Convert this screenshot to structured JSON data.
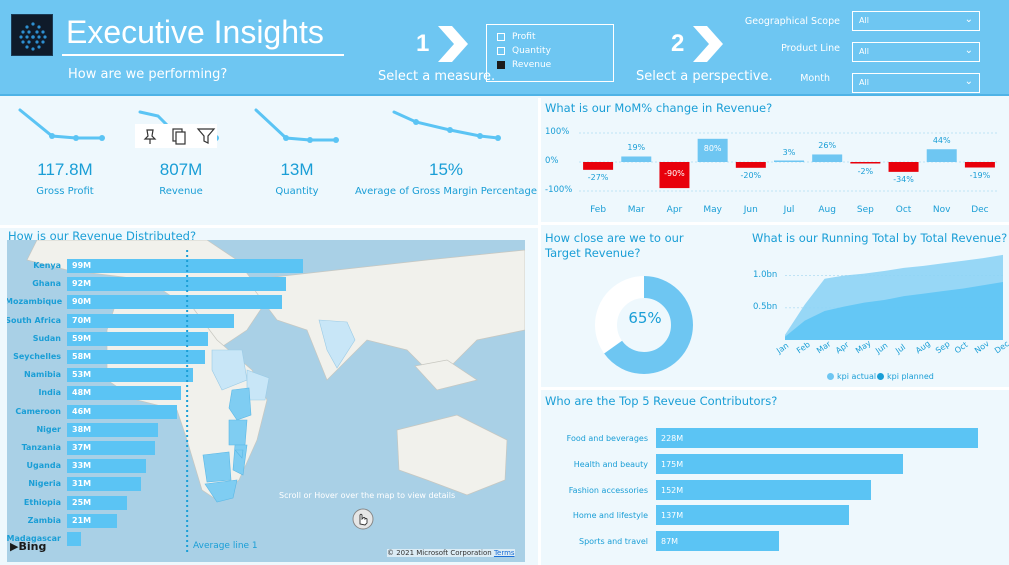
{
  "header": {
    "title": "Executive Insights",
    "subtitle": "How are we performing?",
    "step1_num": "1",
    "step1_text": "Select a measure.",
    "step2_num": "2",
    "step2_text": "Select a perspective.",
    "measures": [
      {
        "label": "Profit",
        "selected": false
      },
      {
        "label": "Quantity",
        "selected": false
      },
      {
        "label": "Revenue",
        "selected": true
      }
    ],
    "filters": [
      {
        "label": "Geographical Scope",
        "value": "All"
      },
      {
        "label": "Product Line",
        "value": "All"
      },
      {
        "label": "Month",
        "value": "All"
      }
    ]
  },
  "kpis": [
    {
      "value": "117.8M",
      "label": "Gross Profit"
    },
    {
      "value": "807M",
      "label": "Revenue"
    },
    {
      "value": "13M",
      "label": "Quantity"
    },
    {
      "value": "15%",
      "label": "Average of Gross Margin Percentage"
    }
  ],
  "distribution": {
    "title": "How is our Revenue Distributed?",
    "scroll_hint": "Scroll or Hover over the map to view details",
    "average_line_label": "Average line 1",
    "copyright": "© 2021 Microsoft Corporation",
    "terms": "Terms",
    "bing": "Bing",
    "chart_data": {
      "type": "bar",
      "orientation": "horizontal",
      "categories": [
        "Kenya",
        "Ghana",
        "Mozambique",
        "South Africa",
        "Sudan",
        "Seychelles",
        "Namibia",
        "India",
        "Cameroon",
        "Niger",
        "Tanzania",
        "Uganda",
        "Nigeria",
        "Ethiopia",
        "Zambia",
        "Madagascar"
      ],
      "values": [
        99,
        92,
        90,
        70,
        59,
        58,
        53,
        48,
        46,
        38,
        37,
        33,
        31,
        25,
        21,
        6
      ],
      "value_labels": [
        "99M",
        "92M",
        "90M",
        "70M",
        "59M",
        "58M",
        "53M",
        "48M",
        "46M",
        "38M",
        "37M",
        "33M",
        "31M",
        "25M",
        "21M",
        ""
      ],
      "average": 50.4
    }
  },
  "mom": {
    "title": "What is our MoM% change in Revenue?",
    "chart_data": {
      "type": "bar",
      "categories": [
        "Feb",
        "Mar",
        "Apr",
        "May",
        "Jun",
        "Jul",
        "Aug",
        "Sep",
        "Oct",
        "Nov",
        "Dec"
      ],
      "values": [
        -27,
        19,
        -90,
        80,
        -20,
        3,
        26,
        -2,
        -34,
        44,
        -19
      ],
      "labels": [
        "-27%",
        "19%",
        "-90%",
        "80%",
        "-20%",
        "3%",
        "26%",
        "-2%",
        "-34%",
        "44%",
        "-19%"
      ],
      "yticks": [
        "100%",
        "0%",
        "-100%"
      ],
      "ylim": [
        -100,
        100
      ],
      "positive_color": "#6ec6f2",
      "negative_color": "#e8000b"
    }
  },
  "target": {
    "title": "How close are we to our Target Revenue?",
    "value_label": "65%",
    "chart_data": {
      "type": "pie",
      "values": [
        65,
        35
      ],
      "colors": [
        "#6ec6f2",
        "#ffffff"
      ]
    }
  },
  "running": {
    "title": "What is our Running Total by Total Revenue?",
    "legend": [
      "kpi actual",
      "kpi planned"
    ],
    "chart_data": {
      "type": "area",
      "categories": [
        "Jan",
        "Feb",
        "Mar",
        "Apr",
        "May",
        "Jun",
        "Jul",
        "Aug",
        "Sep",
        "Oct",
        "Nov",
        "Dec"
      ],
      "yticks": [
        "1.0bn",
        "0.5bn"
      ],
      "ylim": [
        0,
        1.35
      ],
      "series": [
        {
          "name": "kpi planned",
          "values": [
            0.08,
            0.55,
            0.95,
            1.0,
            1.03,
            1.07,
            1.12,
            1.15,
            1.19,
            1.23,
            1.27,
            1.32
          ]
        },
        {
          "name": "kpi actual",
          "values": [
            0.05,
            0.3,
            0.45,
            0.52,
            0.58,
            0.62,
            0.68,
            0.72,
            0.76,
            0.8,
            0.85,
            0.9
          ]
        }
      ]
    }
  },
  "top5": {
    "title": "Who are the Top 5 Reveue Contributors?",
    "chart_data": {
      "type": "bar",
      "orientation": "horizontal",
      "categories": [
        "Food and beverages",
        "Health and beauty",
        "Fashion accessories",
        "Home and lifestyle",
        "Sports and travel"
      ],
      "values": [
        228,
        175,
        152,
        137,
        87
      ],
      "labels": [
        "228M",
        "175M",
        "152M",
        "137M",
        "87M"
      ]
    }
  }
}
